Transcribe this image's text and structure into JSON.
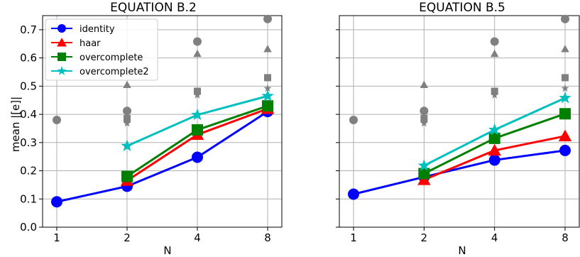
{
  "chart_data": [
    {
      "type": "line",
      "title": "EQUATION B.2",
      "xlabel": "N",
      "ylabel": "mean |[e]|",
      "x_scale": "log2",
      "x_ticks": [
        1,
        2,
        4,
        8
      ],
      "y_ticks": [
        "0.0",
        "0.1",
        "0.2",
        "0.3",
        "0.4",
        "0.5",
        "0.6",
        "0.7"
      ],
      "ylim": [
        0,
        0.75
      ],
      "grid": true,
      "legend": "top-left",
      "series": [
        {
          "name": "identity",
          "color": "#0000ff",
          "marker": "circle",
          "x": [
            1,
            2,
            4,
            8
          ],
          "values": [
            0.09,
            0.145,
            0.248,
            0.41
          ]
        },
        {
          "name": "haar",
          "color": "#ff0000",
          "marker": "triangle",
          "x": [
            2,
            4,
            8
          ],
          "values": [
            0.165,
            0.328,
            0.42
          ]
        },
        {
          "name": "overcomplete",
          "color": "#008000",
          "marker": "square",
          "x": [
            2,
            4,
            8
          ],
          "values": [
            0.18,
            0.345,
            0.43
          ]
        },
        {
          "name": "overcomplete2",
          "color": "#00bfbf",
          "marker": "star",
          "x": [
            2,
            4,
            8
          ],
          "values": [
            0.288,
            0.398,
            0.465
          ]
        }
      ],
      "gray_points": [
        {
          "marker": "circle",
          "x": 1,
          "y": 0.38
        },
        {
          "marker": "circle",
          "x": 2,
          "y": 0.412
        },
        {
          "marker": "triangle",
          "x": 2,
          "y": 0.505
        },
        {
          "marker": "square",
          "x": 2,
          "y": 0.385
        },
        {
          "marker": "star",
          "x": 2,
          "y": 0.368
        },
        {
          "marker": "circle",
          "x": 4,
          "y": 0.658
        },
        {
          "marker": "triangle",
          "x": 4,
          "y": 0.615
        },
        {
          "marker": "square",
          "x": 4,
          "y": 0.482
        },
        {
          "marker": "star",
          "x": 4,
          "y": 0.468
        },
        {
          "marker": "circle",
          "x": 8,
          "y": 0.738
        },
        {
          "marker": "triangle",
          "x": 8,
          "y": 0.632
        },
        {
          "marker": "square",
          "x": 8,
          "y": 0.53
        },
        {
          "marker": "star",
          "x": 8,
          "y": 0.492
        }
      ]
    },
    {
      "type": "line",
      "title": "EQUATION B.5",
      "xlabel": "N",
      "ylabel": "",
      "x_scale": "log2",
      "x_ticks": [
        1,
        2,
        4,
        8
      ],
      "ylim": [
        0,
        0.75
      ],
      "grid": true,
      "series": [
        {
          "name": "identity",
          "color": "#0000ff",
          "marker": "circle",
          "x": [
            1,
            2,
            4,
            8
          ],
          "values": [
            0.117,
            0.178,
            0.238,
            0.272
          ]
        },
        {
          "name": "haar",
          "color": "#ff0000",
          "marker": "triangle",
          "x": [
            2,
            4,
            8
          ],
          "values": [
            0.168,
            0.272,
            0.323
          ]
        },
        {
          "name": "overcomplete",
          "color": "#008000",
          "marker": "square",
          "x": [
            2,
            4,
            8
          ],
          "values": [
            0.19,
            0.315,
            0.402
          ]
        },
        {
          "name": "overcomplete2",
          "color": "#00bfbf",
          "marker": "star",
          "x": [
            2,
            4,
            8
          ],
          "values": [
            0.218,
            0.345,
            0.458
          ]
        }
      ],
      "gray_points": [
        {
          "marker": "circle",
          "x": 1,
          "y": 0.38
        },
        {
          "marker": "circle",
          "x": 2,
          "y": 0.412
        },
        {
          "marker": "triangle",
          "x": 2,
          "y": 0.505
        },
        {
          "marker": "square",
          "x": 2,
          "y": 0.385
        },
        {
          "marker": "star",
          "x": 2,
          "y": 0.368
        },
        {
          "marker": "circle",
          "x": 4,
          "y": 0.658
        },
        {
          "marker": "triangle",
          "x": 4,
          "y": 0.615
        },
        {
          "marker": "square",
          "x": 4,
          "y": 0.482
        },
        {
          "marker": "star",
          "x": 4,
          "y": 0.468
        },
        {
          "marker": "circle",
          "x": 8,
          "y": 0.738
        },
        {
          "marker": "triangle",
          "x": 8,
          "y": 0.632
        },
        {
          "marker": "square",
          "x": 8,
          "y": 0.53
        },
        {
          "marker": "star",
          "x": 8,
          "y": 0.492
        }
      ]
    }
  ]
}
